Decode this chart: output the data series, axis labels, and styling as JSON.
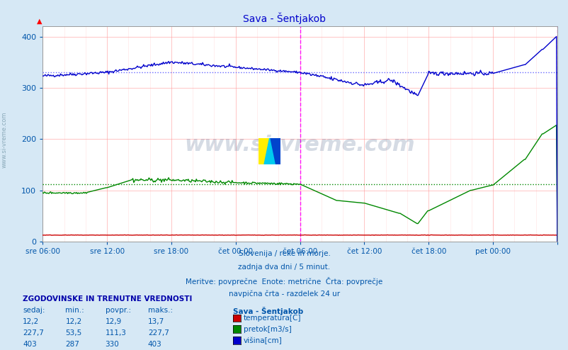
{
  "title": "Sava - Šentjakob",
  "title_color": "#0000cc",
  "bg_color": "#d6e8f5",
  "plot_bg_color": "#ffffff",
  "grid_color_major": "#ff9999",
  "ylim": [
    0,
    420
  ],
  "yticks": [
    0,
    100,
    200,
    300,
    400
  ],
  "tick_label_color": "#0055aa",
  "x_labels": [
    "sre 06:00",
    "sre 12:00",
    "sre 18:00",
    "čet 00:00",
    "čet 06:00",
    "čet 12:00",
    "čet 18:00",
    "pet 00:00",
    ""
  ],
  "x_positions": [
    0,
    72,
    144,
    216,
    288,
    360,
    432,
    504,
    576
  ],
  "vline_positions": [
    288,
    576
  ],
  "vline_color": "#ff00ff",
  "avg_blue": 330,
  "avg_green": 111.3,
  "avg_blue_color": "#6666ff",
  "avg_green_color": "#008800",
  "watermark": "www.si-vreme.com",
  "watermark_color": "#1a3a6b",
  "watermark_alpha": 0.18,
  "footer_lines": [
    "Slovenija / reke in morje.",
    "zadnja dva dni / 5 minut.",
    "Meritve: povprečne  Enote: metrične  Črta: povprečje",
    "navpična črta - razdelek 24 ur"
  ],
  "footer_color": "#0055aa",
  "legend_title": "Sava - Šentjakob",
  "legend_items": [
    {
      "label": "temperatura[C]",
      "color": "#cc0000"
    },
    {
      "label": "pretok[m3/s]",
      "color": "#008800"
    },
    {
      "label": "višina[cm]",
      "color": "#0000cc"
    }
  ],
  "table_header": "ZGODOVINSKE IN TRENUTNE VREDNOSTI",
  "table_cols": [
    "sedaj:",
    "min.:",
    "povpr.:",
    "maks.:"
  ],
  "table_rows": [
    [
      "12,2",
      "12,2",
      "12,9",
      "13,7"
    ],
    [
      "227,7",
      "53,5",
      "111,3",
      "227,7"
    ],
    [
      "403",
      "287",
      "330",
      "403"
    ]
  ],
  "table_color": "#0055aa",
  "table_header_color": "#0000aa",
  "sidewatermark_color": "#7799aa"
}
